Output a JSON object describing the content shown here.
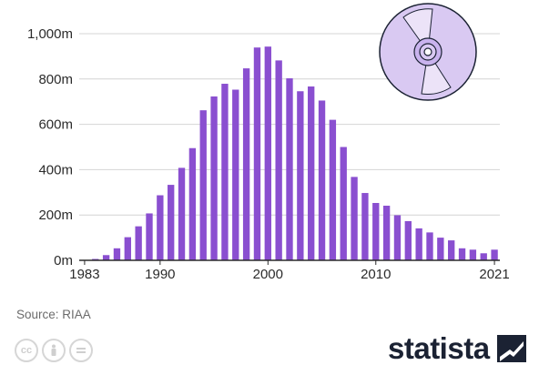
{
  "chart_data": {
    "type": "bar",
    "title": "",
    "xlabel": "",
    "ylabel": "",
    "ylim": [
      0,
      1000
    ],
    "y_ticks": [
      "0m",
      "200m",
      "400m",
      "600m",
      "800m",
      "1,000m"
    ],
    "y_tick_values": [
      0,
      200,
      400,
      600,
      800,
      1000
    ],
    "x_tick_labels": [
      "1983",
      "1990",
      "2000",
      "2010",
      "2021"
    ],
    "x_tick_years": [
      1983,
      1990,
      2000,
      2010,
      2021
    ],
    "grid": true,
    "bar_color": "#8a4fd0",
    "categories": [
      1983,
      1984,
      1985,
      1986,
      1987,
      1988,
      1989,
      1990,
      1991,
      1992,
      1993,
      1994,
      1995,
      1996,
      1997,
      1998,
      1999,
      2000,
      2001,
      2002,
      2003,
      2004,
      2005,
      2006,
      2007,
      2008,
      2009,
      2010,
      2011,
      2012,
      2013,
      2014,
      2015,
      2016,
      2017,
      2018,
      2019,
      2020,
      2021
    ],
    "values": [
      1,
      6,
      23,
      53,
      102,
      150,
      207,
      287,
      333,
      408,
      495,
      662,
      723,
      779,
      753,
      847,
      939,
      943,
      882,
      803,
      746,
      767,
      705,
      620,
      500,
      368,
      297,
      253,
      241,
      199,
      173,
      141,
      123,
      100,
      88,
      53,
      47,
      31,
      47
    ]
  },
  "footer": {
    "source": "Source: RIAA",
    "brand": "statista",
    "license_icons": [
      "cc-icon",
      "attribution-icon",
      "no-derivatives-icon"
    ]
  }
}
